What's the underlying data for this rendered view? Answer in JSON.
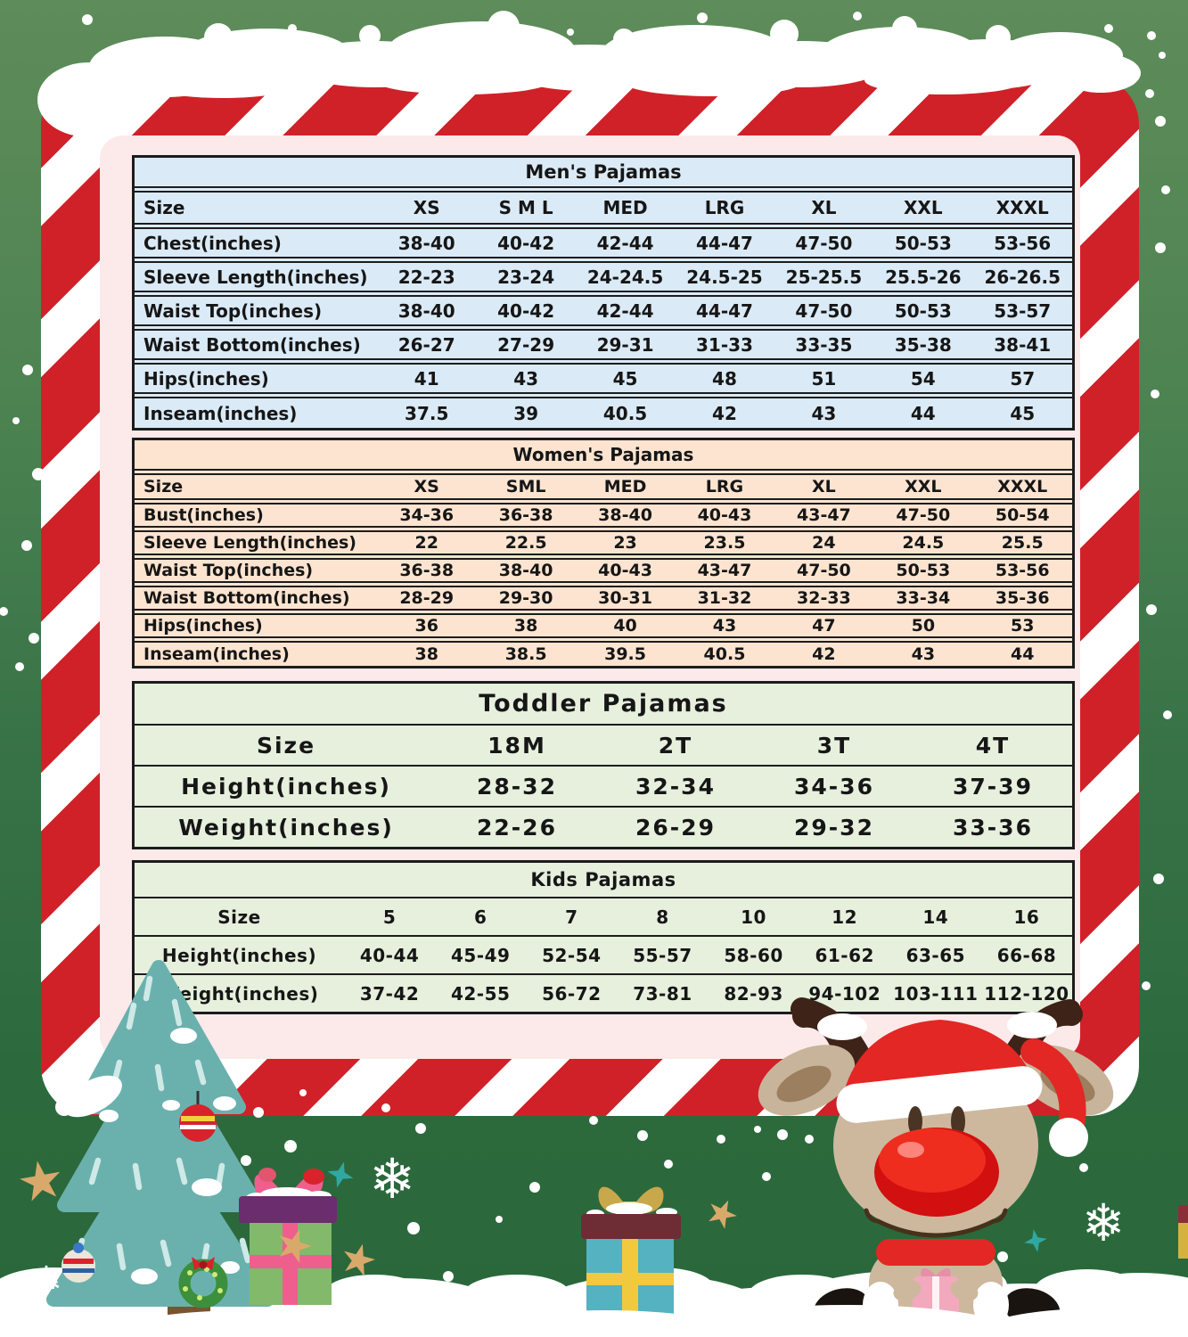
{
  "document_type": "pajamas-size-chart",
  "tables": [
    {
      "id": "mens",
      "title": "Men's Pajamas",
      "fill": "#daeaf6",
      "sep": "double",
      "columns": [
        "Size",
        "XS",
        "S M L",
        "MED",
        "LRG",
        "XL",
        "XXL",
        "XXXL"
      ],
      "rows": [
        {
          "label": "Chest(inches)",
          "values": [
            "38-40",
            "40-42",
            "42-44",
            "44-47",
            "47-50",
            "50-53",
            "53-56"
          ]
        },
        {
          "label": "Sleeve Length(inches)",
          "values": [
            "22-23",
            "23-24",
            "24-24.5",
            "24.5-25",
            "25-25.5",
            "25.5-26",
            "26-26.5"
          ]
        },
        {
          "label": "Waist Top(inches)",
          "values": [
            "38-40",
            "40-42",
            "42-44",
            "44-47",
            "47-50",
            "50-53",
            "53-57"
          ]
        },
        {
          "label": "Waist Bottom(inches)",
          "values": [
            "26-27",
            "27-29",
            "29-31",
            "31-33",
            "33-35",
            "35-38",
            "38-41"
          ]
        },
        {
          "label": "Hips(inches)",
          "values": [
            "41",
            "43",
            "45",
            "48",
            "51",
            "54",
            "57"
          ]
        },
        {
          "label": "Inseam(inches)",
          "values": [
            "37.5",
            "39",
            "40.5",
            "42",
            "43",
            "44",
            "45"
          ]
        }
      ]
    },
    {
      "id": "womens",
      "title": "Women's Pajamas",
      "fill": "#fce4d0",
      "sep": "double",
      "columns": [
        "Size",
        "XS",
        "SML",
        "MED",
        "LRG",
        "XL",
        "XXL",
        "XXXL"
      ],
      "rows": [
        {
          "label": "Bust(inches)",
          "values": [
            "34-36",
            "36-38",
            "38-40",
            "40-43",
            "43-47",
            "47-50",
            "50-54"
          ]
        },
        {
          "label": "Sleeve Length(inches)",
          "values": [
            "22",
            "22.5",
            "23",
            "23.5",
            "24",
            "24.5",
            "25.5"
          ]
        },
        {
          "label": "Waist Top(inches)",
          "values": [
            "36-38",
            "38-40",
            "40-43",
            "43-47",
            "47-50",
            "50-53",
            "53-56"
          ]
        },
        {
          "label": "Waist Bottom(inches)",
          "values": [
            "28-29",
            "29-30",
            "30-31",
            "31-32",
            "32-33",
            "33-34",
            "35-36"
          ]
        },
        {
          "label": "Hips(inches)",
          "values": [
            "36",
            "38",
            "40",
            "43",
            "47",
            "50",
            "53"
          ]
        },
        {
          "label": "Inseam(inches)",
          "values": [
            "38",
            "38.5",
            "39.5",
            "40.5",
            "42",
            "43",
            "44"
          ]
        }
      ]
    },
    {
      "id": "toddler",
      "title": "Toddler Pajamas",
      "fill": "#e6f0dd",
      "sep": "single",
      "columns": [
        "Size",
        "18M",
        "2T",
        "3T",
        "4T"
      ],
      "rows": [
        {
          "label": "Height(inches)",
          "values": [
            "28-32",
            "32-34",
            "34-36",
            "37-39"
          ]
        },
        {
          "label": "Weight(inches)",
          "values": [
            "22-26",
            "26-29",
            "29-32",
            "33-36"
          ]
        }
      ]
    },
    {
      "id": "kids",
      "title": "Kids Pajamas",
      "fill": "#e6f0dd",
      "sep": "single",
      "columns": [
        "Size",
        "5",
        "6",
        "7",
        "8",
        "10",
        "12",
        "14",
        "16"
      ],
      "rows": [
        {
          "label": "Height(inches)",
          "values": [
            "40-44",
            "45-49",
            "52-54",
            "55-57",
            "58-60",
            "61-62",
            "63-65",
            "66-68"
          ]
        },
        {
          "label": "Weight(inches)",
          "values": [
            "37-42",
            "42-55",
            "56-72",
            "73-81",
            "82-93",
            "94-102",
            "103-111",
            "112-120"
          ]
        }
      ]
    }
  ],
  "decor": {
    "snowflake_glyph": "❄",
    "elements": [
      "snow-drift-top",
      "snow-drift-bottom",
      "snow-dots",
      "christmas-tree",
      "wreath",
      "gift-green",
      "gift-teal",
      "reindeer",
      "snowflakes",
      "stars"
    ]
  },
  "colors": {
    "background_green_top": "#5e8c5a",
    "background_green_bottom": "#2a683b",
    "frame_red": "#d02128",
    "frame_white": "#ffffff",
    "panel_pink": "#fce9e9",
    "table_border": "#1c1c1c",
    "mens_fill": "#daeaf6",
    "womens_fill": "#fce4d0",
    "toddler_kids_fill": "#e6f0dd",
    "tree_teal": "#6ab1ae",
    "trunk_brown": "#7a5331",
    "star_tan": "#d9a96c",
    "sparkle_teal": "#2fa8a2",
    "reindeer_fur": "#cdb89e",
    "reindeer_antler": "#3d2318",
    "nose_red": "#e8151d",
    "hat_red": "#e32724",
    "gift_green": "#82b96a",
    "gift_pink_ribbon": "#ef5f8e",
    "gift_purple_lid": "#6b2d6e",
    "gift_teal_body": "#55b2c1",
    "gift_yellow_ribbon": "#f0c93f",
    "gift_maroon_lid": "#6e2c35"
  }
}
